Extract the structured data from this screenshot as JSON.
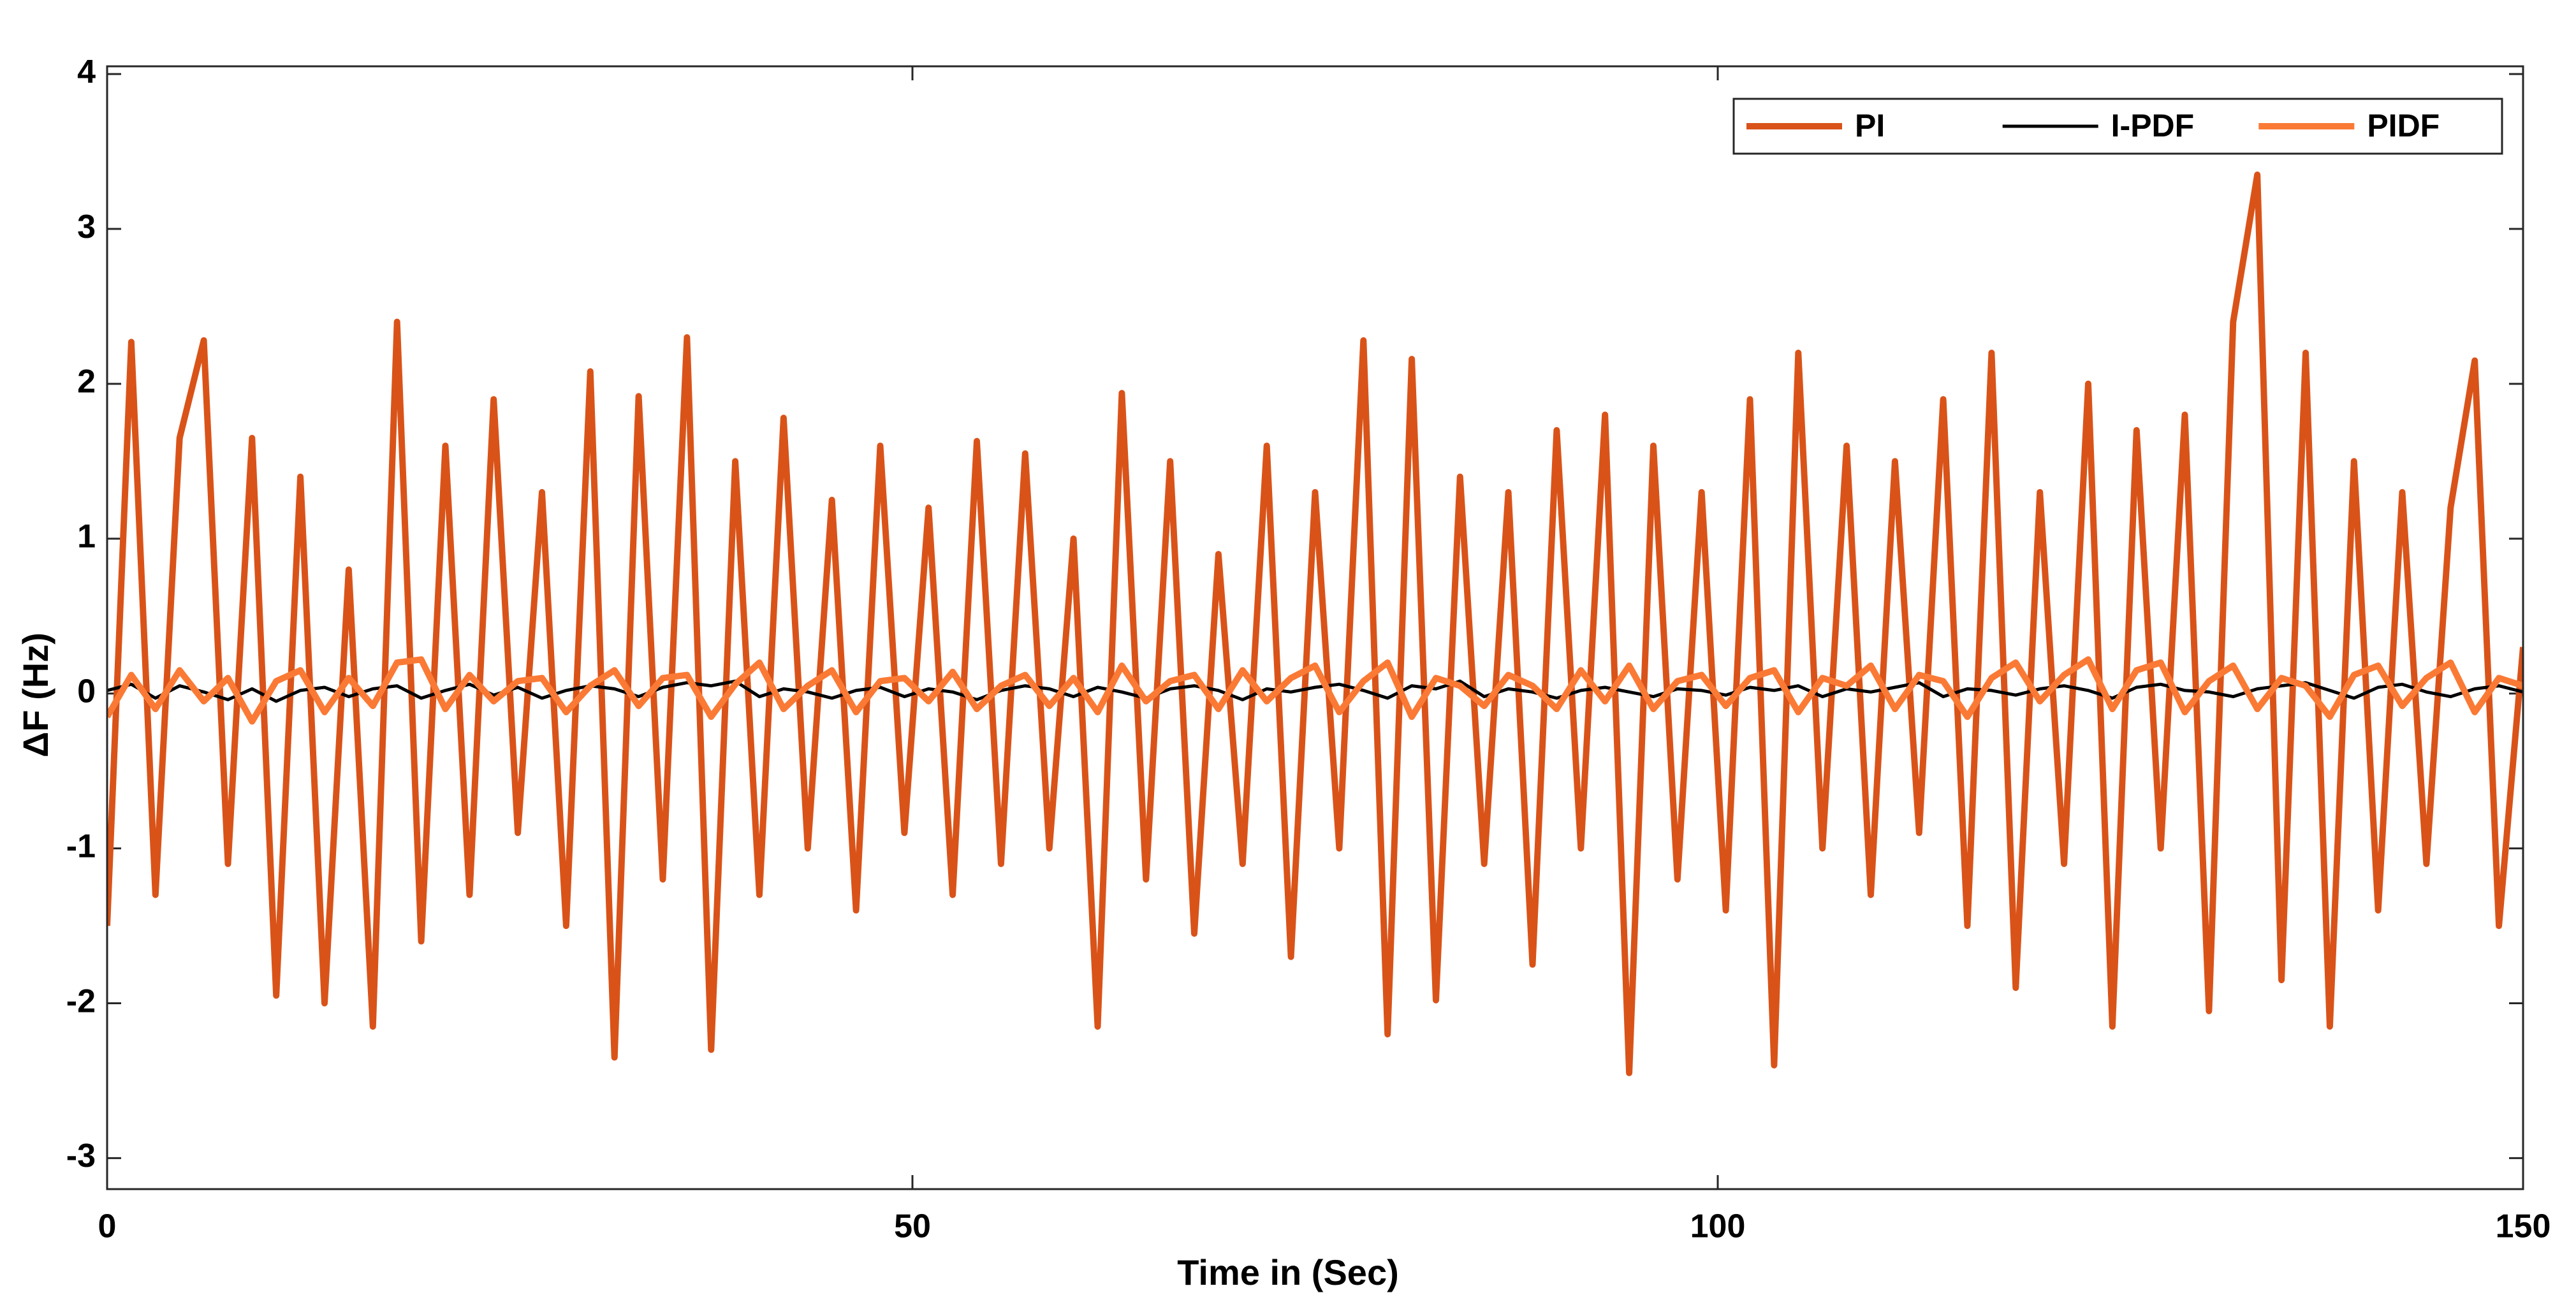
{
  "chart_data": {
    "type": "line",
    "xlabel": "Time in (Sec)",
    "ylabel": "ΔF (Hz)",
    "x": [
      0,
      1.5,
      3,
      4.5,
      6,
      7.5,
      9,
      10.5,
      12,
      13.5,
      15,
      16.5,
      18,
      19.5,
      21,
      22.5,
      24,
      25.5,
      27,
      28.5,
      30,
      31.5,
      33,
      34.5,
      36,
      37.5,
      39,
      40.5,
      42,
      43.5,
      45,
      46.5,
      48,
      49.5,
      51,
      52.5,
      54,
      55.5,
      57,
      58.5,
      60,
      61.5,
      63,
      64.5,
      66,
      67.5,
      69,
      70.5,
      72,
      73.5,
      75,
      76.5,
      78,
      79.5,
      81,
      82.5,
      84,
      85.5,
      87,
      88.5,
      90,
      91.5,
      93,
      94.5,
      96,
      97.5,
      99,
      100.5,
      102,
      103.5,
      105,
      106.5,
      108,
      109.5,
      111,
      112.5,
      114,
      115.5,
      117,
      118.5,
      120,
      121.5,
      123,
      124.5,
      126,
      127.5,
      129,
      130.5,
      132,
      133.5,
      135,
      136.5,
      138,
      139.5,
      141,
      142.5,
      144,
      145.5,
      147,
      148.5,
      150
    ],
    "series": [
      {
        "name": "PI",
        "color": "#d95319",
        "values": [
          -1.5,
          2.27,
          -1.3,
          1.65,
          2.28,
          -1.1,
          1.65,
          -1.95,
          1.4,
          -2.0,
          0.8,
          -2.15,
          2.4,
          -1.6,
          1.6,
          -1.3,
          1.9,
          -0.9,
          1.3,
          -1.5,
          2.08,
          -2.35,
          1.92,
          -1.2,
          2.3,
          -2.3,
          1.5,
          -1.3,
          1.78,
          -1.0,
          1.25,
          -1.4,
          1.6,
          -0.9,
          1.2,
          -1.3,
          1.63,
          -1.1,
          1.55,
          -1.0,
          1.0,
          -2.15,
          1.94,
          -1.2,
          1.5,
          -1.55,
          0.9,
          -1.1,
          1.6,
          -1.7,
          1.3,
          -1.0,
          2.28,
          -2.2,
          2.16,
          -1.98,
          1.4,
          -1.1,
          1.3,
          -1.75,
          1.7,
          -1.0,
          1.8,
          -2.45,
          1.6,
          -1.2,
          1.3,
          -1.4,
          1.9,
          -2.4,
          2.2,
          -1.0,
          1.6,
          -1.3,
          1.5,
          -0.9,
          1.9,
          -1.5,
          2.2,
          -1.9,
          1.3,
          -1.1,
          2.0,
          -2.15,
          1.7,
          -1.0,
          1.8,
          -2.05,
          2.4,
          3.35,
          -1.85,
          2.2,
          -2.15,
          1.5,
          -1.4,
          1.3,
          -1.1,
          1.2,
          2.15,
          -1.5,
          0.3
        ]
      },
      {
        "name": "I-PDF",
        "color": "#000000",
        "values": [
          0.02,
          0.06,
          -0.03,
          0.05,
          0.01,
          -0.04,
          0.03,
          -0.05,
          0.02,
          0.04,
          -0.02,
          0.03,
          0.05,
          -0.03,
          0.02,
          0.06,
          -0.01,
          0.04,
          -0.03,
          0.02,
          0.05,
          0.03,
          -0.02,
          0.04,
          0.07,
          0.05,
          0.08,
          -0.02,
          0.03,
          0.01,
          -0.03,
          0.02,
          0.04,
          -0.02,
          0.03,
          0.01,
          -0.04,
          0.02,
          0.05,
          0.03,
          -0.02,
          0.04,
          0.01,
          -0.03,
          0.03,
          0.05,
          0.02,
          -0.04,
          0.03,
          0.01,
          0.04,
          0.06,
          0.02,
          -0.03,
          0.05,
          0.03,
          0.08,
          -0.02,
          0.03,
          0.01,
          -0.03,
          0.02,
          0.04,
          0.01,
          -0.02,
          0.03,
          0.02,
          -0.01,
          0.04,
          0.02,
          0.05,
          -0.02,
          0.03,
          0.01,
          0.04,
          0.07,
          -0.02,
          0.03,
          0.02,
          -0.01,
          0.03,
          0.05,
          0.02,
          -0.03,
          0.04,
          0.06,
          0.02,
          0.01,
          -0.02,
          0.03,
          0.05,
          0.07,
          0.02,
          -0.03,
          0.04,
          0.06,
          0.01,
          -0.02,
          0.03,
          0.05,
          0.01
        ]
      },
      {
        "name": "PIDF",
        "color": "#fa7a35",
        "values": [
          -0.15,
          0.12,
          -0.1,
          0.15,
          -0.05,
          0.1,
          -0.18,
          0.08,
          0.15,
          -0.12,
          0.1,
          -0.08,
          0.2,
          0.22,
          -0.1,
          0.12,
          -0.05,
          0.08,
          0.1,
          -0.12,
          0.05,
          0.15,
          -0.08,
          0.1,
          0.12,
          -0.15,
          0.06,
          0.2,
          -0.1,
          0.05,
          0.15,
          -0.12,
          0.08,
          0.1,
          -0.05,
          0.14,
          -0.1,
          0.05,
          0.12,
          -0.08,
          0.1,
          -0.12,
          0.18,
          -0.05,
          0.08,
          0.12,
          -0.1,
          0.15,
          -0.05,
          0.1,
          0.18,
          -0.12,
          0.08,
          0.2,
          -0.15,
          0.1,
          0.05,
          -0.08,
          0.12,
          0.05,
          -0.1,
          0.15,
          -0.05,
          0.18,
          -0.1,
          0.08,
          0.12,
          -0.08,
          0.1,
          0.15,
          -0.12,
          0.1,
          0.05,
          0.18,
          -0.1,
          0.12,
          0.08,
          -0.15,
          0.1,
          0.2,
          -0.05,
          0.12,
          0.22,
          -0.1,
          0.15,
          0.2,
          -0.12,
          0.08,
          0.18,
          -0.1,
          0.1,
          0.05,
          -0.15,
          0.12,
          0.18,
          -0.08,
          0.1,
          0.2,
          -0.12,
          0.1,
          0.05
        ]
      }
    ],
    "xlim": [
      0,
      150
    ],
    "xticks": [
      0,
      50,
      100,
      150
    ],
    "ylim": [
      -3.2,
      4.05
    ],
    "yticks": [
      -3,
      -2,
      -1,
      0,
      1,
      2,
      3,
      4
    ],
    "grid": false,
    "legend": "upper right"
  }
}
